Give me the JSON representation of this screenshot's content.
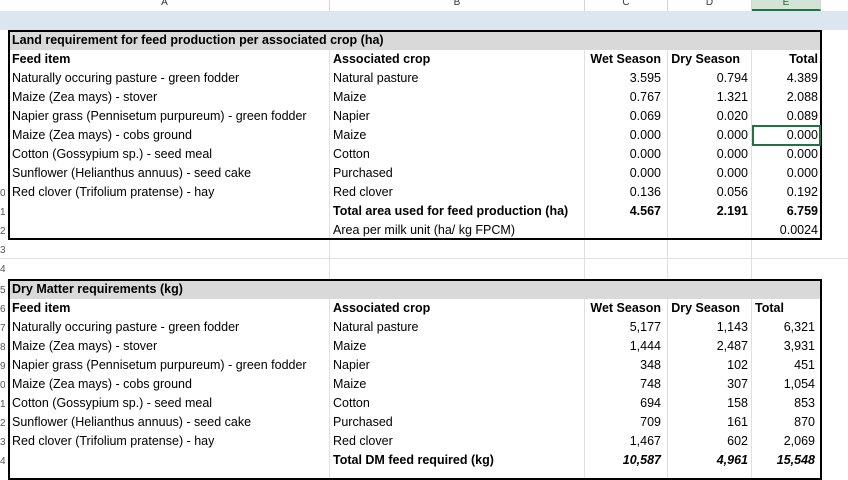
{
  "columns": {
    "a": "A",
    "b": "B",
    "c": "C",
    "d": "D",
    "e": "E"
  },
  "row_numbers": {
    "r10": "0",
    "r11": "1",
    "r12": "2",
    "r13": "3",
    "r14": "4",
    "r15": "5",
    "r16": "6",
    "r17": "7",
    "r18": "8",
    "r19": "9",
    "r20": "0",
    "r21": "1",
    "r22": "2",
    "r23": "3",
    "r24": "4"
  },
  "land": {
    "title": "Land requirement for feed production per associated crop (ha)",
    "headers": {
      "feed_item": "Feed item",
      "crop": "Associated crop",
      "wet": "Wet Season",
      "dry": "Dry Season",
      "total": "Total"
    },
    "rows": [
      {
        "item": "Naturally occuring pasture - green fodder",
        "crop": "Natural pasture",
        "wet": "3.595",
        "dry": "0.794",
        "total": "4.389"
      },
      {
        "item": "Maize (Zea mays) - stover",
        "crop": "Maize",
        "wet": "0.767",
        "dry": "1.321",
        "total": "2.088"
      },
      {
        "item": "Napier grass (Pennisetum purpureum) - green fodder",
        "crop": "Napier",
        "wet": "0.069",
        "dry": "0.020",
        "total": "0.089"
      },
      {
        "item": "Maize (Zea mays) - cobs ground",
        "crop": "Maize",
        "wet": "0.000",
        "dry": "0.000",
        "total": "0.000"
      },
      {
        "item": "Cotton (Gossypium sp.) - seed meal",
        "crop": "Cotton",
        "wet": "0.000",
        "dry": "0.000",
        "total": "0.000"
      },
      {
        "item": "Sunflower (Helianthus annuus) - seed cake",
        "crop": "Purchased",
        "wet": "0.000",
        "dry": "0.000",
        "total": "0.000"
      },
      {
        "item": "Red clover (Trifolium pratense) - hay",
        "crop": "Red clover",
        "wet": "0.136",
        "dry": "0.056",
        "total": "0.192"
      }
    ],
    "total_label": "Total area used for feed production (ha)",
    "total_wet": "4.567",
    "total_dry": "2.191",
    "total_total": "6.759",
    "per_unit_label": "Area per milk unit (ha/ kg FPCM)",
    "per_unit_value": "0.0024"
  },
  "dm": {
    "title": "Dry Matter requirements (kg)",
    "headers": {
      "feed_item": "Feed item",
      "crop": "Associated crop",
      "wet": "Wet Season",
      "dry": "Dry Season",
      "total": "Total"
    },
    "rows": [
      {
        "item": "Naturally occuring pasture - green fodder",
        "crop": "Natural pasture",
        "wet": "5,177",
        "dry": "1,143",
        "total": "6,321"
      },
      {
        "item": "Maize (Zea mays) - stover",
        "crop": "Maize",
        "wet": "1,444",
        "dry": "2,487",
        "total": "3,931"
      },
      {
        "item": "Napier grass (Pennisetum purpureum) - green fodder",
        "crop": "Napier",
        "wet": "348",
        "dry": "102",
        "total": "451"
      },
      {
        "item": "Maize (Zea mays) - cobs ground",
        "crop": "Maize",
        "wet": "748",
        "dry": "307",
        "total": "1,054"
      },
      {
        "item": "Cotton (Gossypium sp.) - seed meal",
        "crop": "Cotton",
        "wet": "694",
        "dry": "158",
        "total": "853"
      },
      {
        "item": "Sunflower (Helianthus annuus) - seed cake",
        "crop": "Purchased",
        "wet": "709",
        "dry": "161",
        "total": "870"
      },
      {
        "item": "Red clover (Trifolium pratense) - hay",
        "crop": "Red clover",
        "wet": "1,467",
        "dry": "602",
        "total": "2,069"
      }
    ],
    "total_label": "Total DM feed required (kg)",
    "total_wet": "10,587",
    "total_dry": "4,961",
    "total_total": "15,548"
  }
}
